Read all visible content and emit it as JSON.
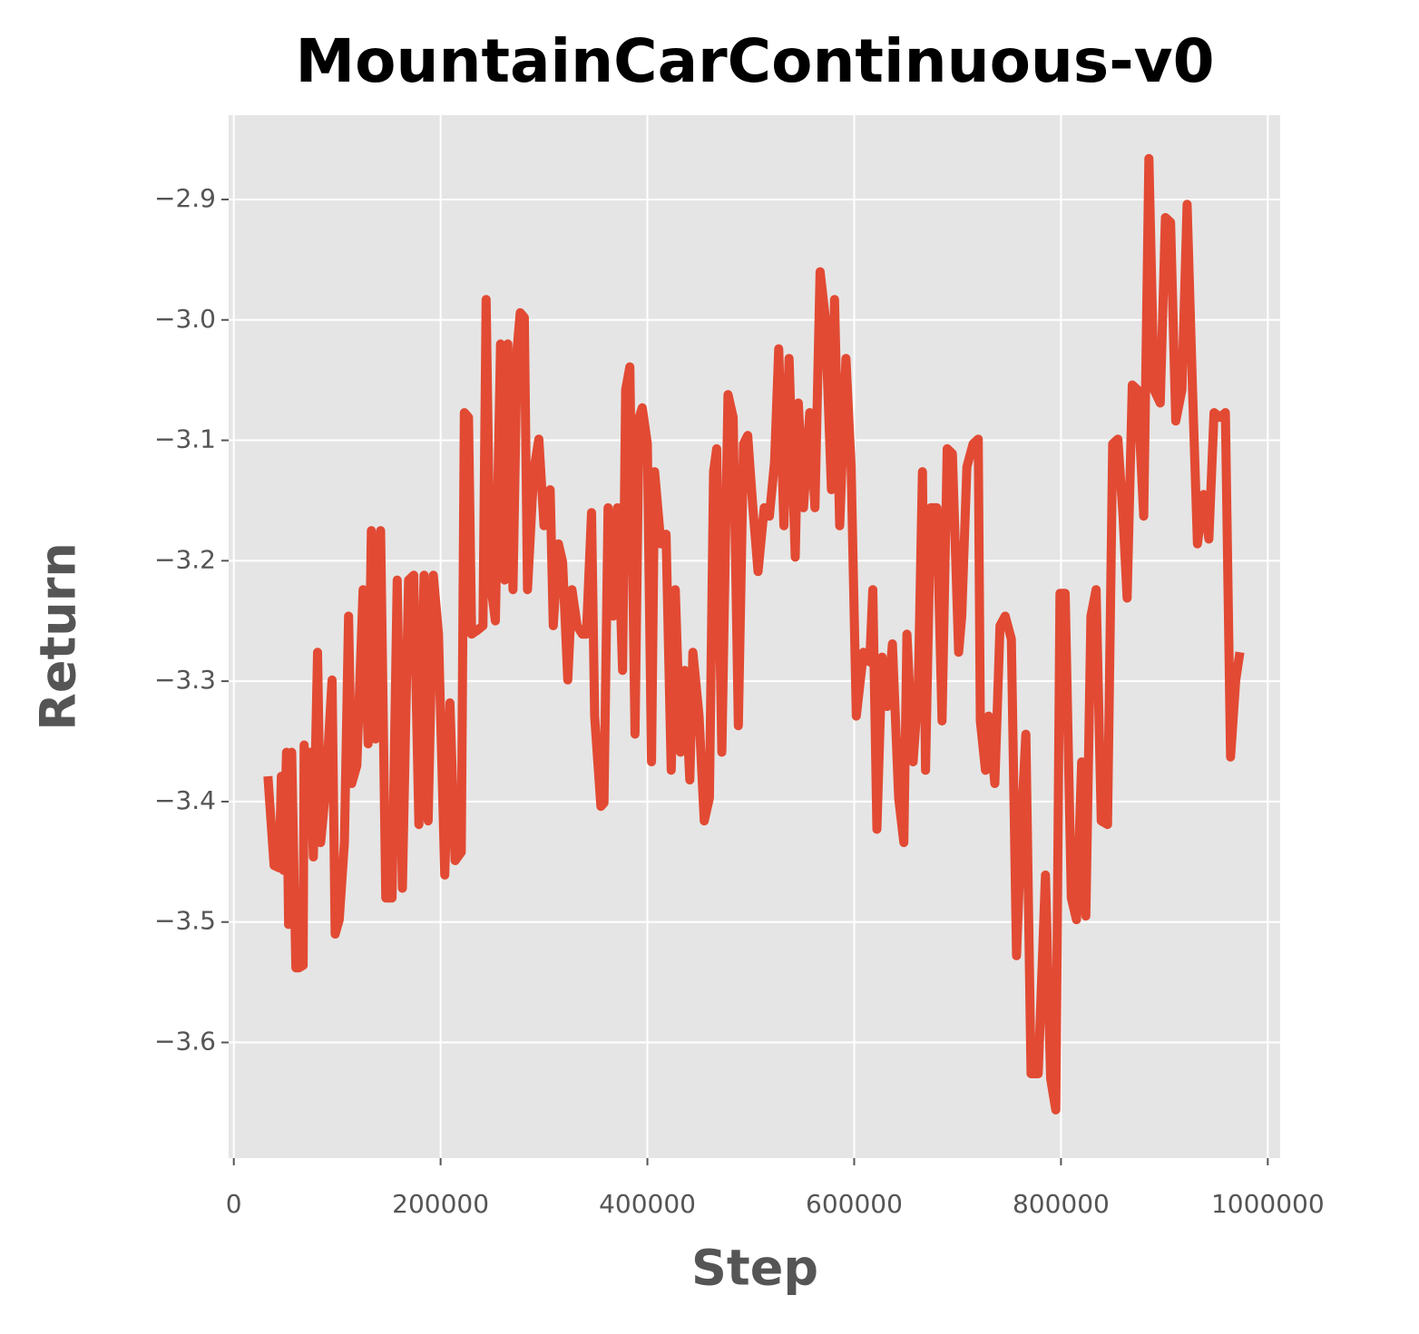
{
  "chart_data": {
    "type": "line",
    "title": "MountainCarContinuous-v0",
    "xlabel": "Step",
    "ylabel": "Return",
    "xlim": [
      -5000,
      1012000
    ],
    "ylim": [
      -3.696,
      -2.83
    ],
    "xticks": [
      0,
      200000,
      400000,
      600000,
      800000,
      1000000
    ],
    "yticks": [
      {
        "value": -3.6,
        "label": "−3.6"
      },
      {
        "value": -3.5,
        "label": "−3.5"
      },
      {
        "value": -3.4,
        "label": "−3.4"
      },
      {
        "value": -3.3,
        "label": "−3.3"
      },
      {
        "value": -3.2,
        "label": "−3.2"
      },
      {
        "value": -3.1,
        "label": "−3.1"
      },
      {
        "value": -3.0,
        "label": "−3.0"
      },
      {
        "value": -2.9,
        "label": "−2.9"
      }
    ],
    "grid": true,
    "background": "#e5e5e5",
    "x": [
      33000,
      39000,
      44000,
      46000,
      48000,
      51000,
      53000,
      56000,
      60000,
      63000,
      67000,
      68000,
      70000,
      74000,
      77000,
      81000,
      84000,
      88000,
      91000,
      95000,
      98000,
      102000,
      107000,
      111000,
      114000,
      119000,
      125000,
      130000,
      133000,
      137000,
      142000,
      147000,
      153000,
      158000,
      163000,
      169000,
      174000,
      179000,
      184000,
      188000,
      193000,
      198000,
      204000,
      209000,
      214000,
      220000,
      223000,
      227000,
      230000,
      235000,
      241000,
      244000,
      248000,
      253000,
      258000,
      262000,
      265000,
      270000,
      274000,
      277000,
      281000,
      284000,
      290000,
      295000,
      300000,
      306000,
      309000,
      314000,
      318000,
      323000,
      327000,
      332000,
      337000,
      341000,
      346000,
      349000,
      355000,
      358000,
      362000,
      367000,
      371000,
      376000,
      379000,
      383000,
      388000,
      392000,
      395000,
      400000,
      404000,
      407000,
      413000,
      418000,
      423000,
      427000,
      432000,
      436000,
      441000,
      444000,
      450000,
      455000,
      460000,
      464000,
      467000,
      472000,
      478000,
      483000,
      488000,
      493000,
      497000,
      502000,
      507000,
      513000,
      518000,
      523000,
      527000,
      532000,
      537000,
      543000,
      546000,
      551000,
      557000,
      562000,
      567000,
      572000,
      578000,
      581000,
      586000,
      592000,
      597000,
      602000,
      609000,
      615000,
      618000,
      622000,
      627000,
      632000,
      637000,
      643000,
      648000,
      651000,
      657000,
      662000,
      666000,
      669000,
      674000,
      680000,
      685000,
      690000,
      695000,
      701000,
      704000,
      709000,
      715000,
      720000,
      722000,
      727000,
      730000,
      736000,
      741000,
      746000,
      752000,
      757000,
      762000,
      766000,
      771000,
      778000,
      785000,
      790000,
      795000,
      799000,
      804000,
      810000,
      815000,
      820000,
      824000,
      829000,
      834000,
      839000,
      845000,
      850000,
      855000,
      860000,
      864000,
      869000,
      874000,
      880000,
      885000,
      890000,
      896000,
      901000,
      906000,
      911000,
      917000,
      922000,
      927000,
      932000,
      938000,
      943000,
      948000,
      954000,
      959000,
      964000,
      969000,
      973000
    ],
    "series": [
      {
        "name": "Return",
        "color": "#E24A33",
        "values": [
          -3.379,
          -3.453,
          -3.455,
          -3.379,
          -3.457,
          -3.359,
          -3.502,
          -3.359,
          -3.538,
          -3.538,
          -3.536,
          -3.353,
          -3.412,
          -3.359,
          -3.446,
          -3.276,
          -3.434,
          -3.397,
          -3.359,
          -3.299,
          -3.51,
          -3.498,
          -3.434,
          -3.246,
          -3.385,
          -3.37,
          -3.224,
          -3.352,
          -3.175,
          -3.348,
          -3.175,
          -3.48,
          -3.48,
          -3.216,
          -3.472,
          -3.216,
          -3.212,
          -3.419,
          -3.212,
          -3.416,
          -3.212,
          -3.261,
          -3.461,
          -3.318,
          -3.449,
          -3.442,
          -3.077,
          -3.081,
          -3.261,
          -3.258,
          -3.254,
          -2.983,
          -3.216,
          -3.25,
          -3.02,
          -3.216,
          -3.02,
          -3.224,
          -3.024,
          -2.994,
          -2.998,
          -3.224,
          -3.126,
          -3.099,
          -3.171,
          -3.141,
          -3.254,
          -3.186,
          -3.201,
          -3.299,
          -3.224,
          -3.254,
          -3.261,
          -3.261,
          -3.16,
          -3.329,
          -3.404,
          -3.401,
          -3.156,
          -3.246,
          -3.156,
          -3.291,
          -3.058,
          -3.039,
          -3.344,
          -3.081,
          -3.073,
          -3.103,
          -3.367,
          -3.126,
          -3.186,
          -3.178,
          -3.374,
          -3.224,
          -3.359,
          -3.291,
          -3.382,
          -3.276,
          -3.329,
          -3.416,
          -3.397,
          -3.126,
          -3.107,
          -3.359,
          -3.062,
          -3.081,
          -3.337,
          -3.103,
          -3.096,
          -3.156,
          -3.209,
          -3.156,
          -3.163,
          -3.118,
          -3.024,
          -3.171,
          -3.032,
          -3.197,
          -3.069,
          -3.156,
          -3.077,
          -3.156,
          -2.96,
          -2.998,
          -3.141,
          -2.983,
          -3.171,
          -3.032,
          -3.122,
          -3.329,
          -3.276,
          -3.284,
          -3.224,
          -3.423,
          -3.28,
          -3.321,
          -3.269,
          -3.397,
          -3.434,
          -3.261,
          -3.367,
          -3.306,
          -3.126,
          -3.374,
          -3.156,
          -3.156,
          -3.333,
          -3.107,
          -3.111,
          -3.276,
          -3.246,
          -3.122,
          -3.103,
          -3.099,
          -3.333,
          -3.374,
          -3.329,
          -3.385,
          -3.254,
          -3.246,
          -3.265,
          -3.528,
          -3.412,
          -3.344,
          -3.626,
          -3.626,
          -3.461,
          -3.63,
          -3.656,
          -3.227,
          -3.227,
          -3.48,
          -3.498,
          -3.367,
          -3.495,
          -3.246,
          -3.224,
          -3.416,
          -3.419,
          -3.103,
          -3.099,
          -3.163,
          -3.231,
          -3.054,
          -3.058,
          -3.163,
          -2.866,
          -3.058,
          -3.069,
          -2.915,
          -2.919,
          -3.084,
          -3.058,
          -2.904,
          -3.051,
          -3.186,
          -3.145,
          -3.182,
          -3.077,
          -3.081,
          -3.077,
          -3.363,
          -3.299,
          -3.276
        ]
      }
    ]
  }
}
